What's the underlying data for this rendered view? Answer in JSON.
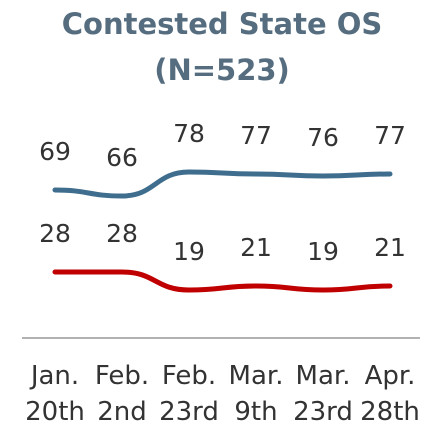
{
  "chart_data": {
    "type": "line",
    "title": "Contested State OS",
    "subtitle": "(N=523)",
    "categories": [
      "Jan. 20th",
      "Feb. 2nd",
      "Feb. 23rd",
      "Mar. 9th",
      "Mar. 23rd",
      "Apr. 28th"
    ],
    "series": [
      {
        "color": "#3e6d8d",
        "values": [
          69,
          66,
          78,
          77,
          76,
          77
        ]
      },
      {
        "color": "#c00000",
        "values": [
          28,
          28,
          19,
          21,
          19,
          21
        ]
      }
    ]
  }
}
